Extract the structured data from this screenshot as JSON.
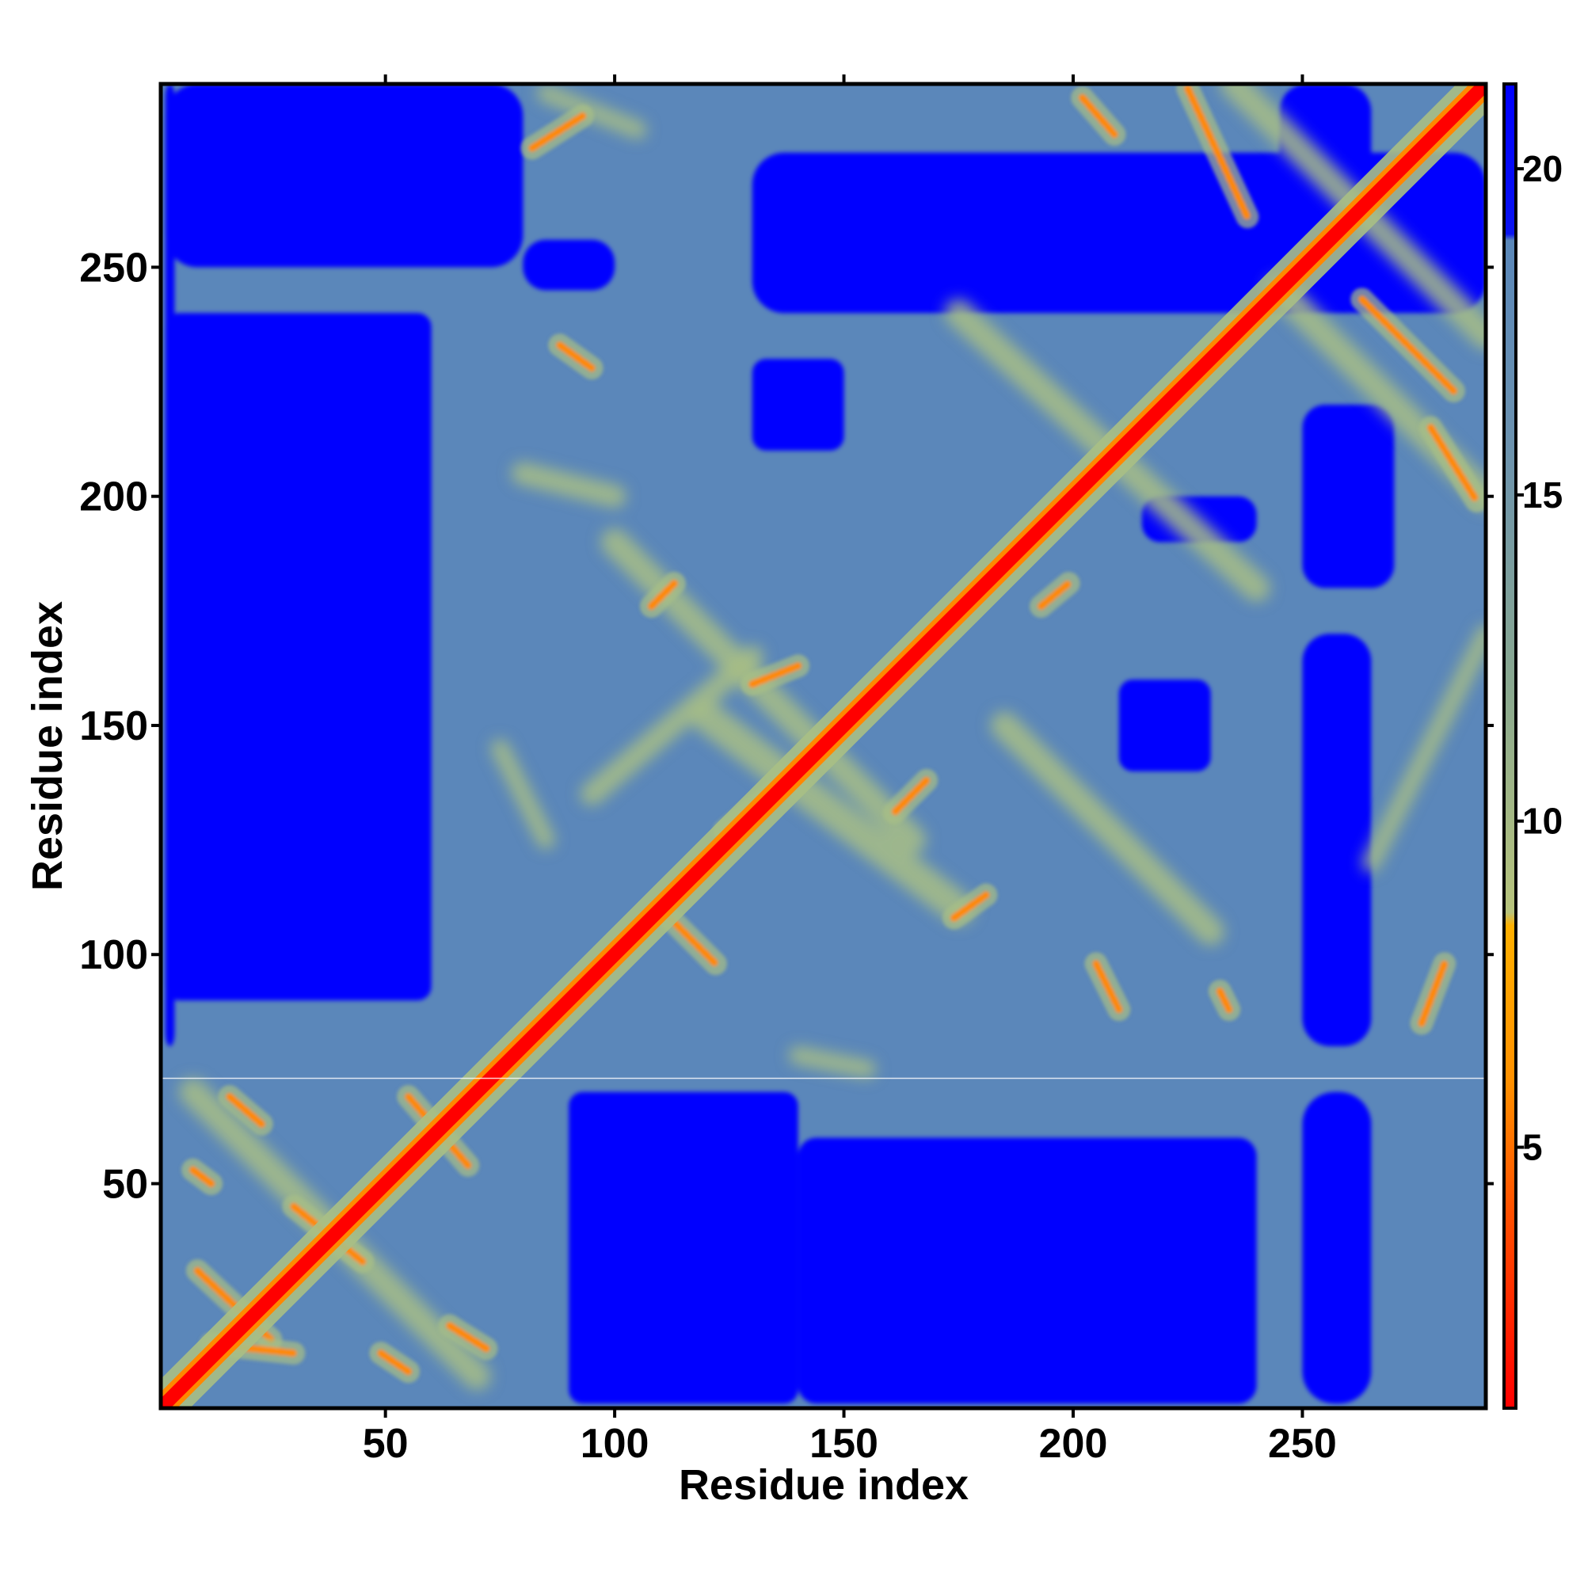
{
  "chart_data": {
    "type": "heatmap",
    "title": "",
    "xlabel": "Residue index",
    "ylabel": "Residue index",
    "xlim": [
      1,
      290
    ],
    "ylim": [
      1,
      290
    ],
    "x_ticks": [
      50,
      100,
      150,
      200,
      250
    ],
    "y_ticks": [
      50,
      100,
      150,
      200,
      250
    ],
    "colorbar": {
      "range": [
        1,
        21.3
      ],
      "ticks": [
        5,
        10,
        15,
        20
      ],
      "color_stops": [
        {
          "value": 1,
          "color": "#ff0000"
        },
        {
          "value": 4,
          "color": "#ff5000"
        },
        {
          "value": 6,
          "color": "#ff9000"
        },
        {
          "value": 8.4,
          "color": "#ffb000"
        },
        {
          "value": 8.6,
          "color": "#b8c47c"
        },
        {
          "value": 12,
          "color": "#8aa98f"
        },
        {
          "value": 16,
          "color": "#6a91b0"
        },
        {
          "value": 18.9,
          "color": "#5a87b9"
        },
        {
          "value": 19,
          "color": "#0a14f0"
        },
        {
          "value": 21.3,
          "color": "#0000ff"
        }
      ]
    },
    "colors": {
      "background_level": "#5b87ba",
      "far": "#0000ff",
      "mid": "#a9bf85",
      "near": "#ff8800",
      "diagonal": "#ff0000"
    },
    "features": {
      "near_contacts": [
        {
          "x": [
            112,
            122
          ],
          "y": [
            108,
            98
          ]
        },
        {
          "x": [
            135,
            124
          ],
          "y": [
            136,
            127
          ]
        },
        {
          "x": [
            130,
            140
          ],
          "y": [
            159,
            163
          ]
        },
        {
          "x": [
            108,
            113
          ],
          "y": [
            176,
            181
          ]
        },
        {
          "x": [
            168,
            161
          ],
          "y": [
            138,
            131
          ]
        },
        {
          "x": [
            174,
            181
          ],
          "y": [
            108,
            113
          ]
        },
        {
          "x": [
            193,
            199
          ],
          "y": [
            176,
            181
          ]
        },
        {
          "x": [
            202,
            209
          ],
          "y": [
            287,
            279
          ]
        },
        {
          "x": [
            225,
            238
          ],
          "y": [
            289,
            261
          ]
        },
        {
          "x": [
            263,
            283
          ],
          "y": [
            243,
            223
          ]
        },
        {
          "x": [
            278,
            288
          ],
          "y": [
            215,
            199
          ]
        },
        {
          "x": [
            16,
            23
          ],
          "y": [
            69,
            63
          ]
        },
        {
          "x": [
            9,
            25
          ],
          "y": [
            31,
            16
          ]
        },
        {
          "x": [
            12,
            30
          ],
          "y": [
            15,
            13
          ]
        },
        {
          "x": [
            30,
            45
          ],
          "y": [
            45,
            33
          ]
        },
        {
          "x": [
            55,
            68
          ],
          "y": [
            69,
            54
          ]
        },
        {
          "x": [
            64,
            72
          ],
          "y": [
            19,
            14
          ]
        },
        {
          "x": [
            49,
            55
          ],
          "y": [
            13,
            9
          ]
        },
        {
          "x": [
            8,
            12
          ],
          "y": [
            53,
            50
          ]
        },
        {
          "x": [
            82,
            93
          ],
          "y": [
            276,
            283
          ]
        },
        {
          "x": [
            88,
            95
          ],
          "y": [
            233,
            228
          ]
        },
        {
          "x": [
            276,
            281
          ],
          "y": [
            85,
            98
          ]
        },
        {
          "x": [
            232,
            234
          ],
          "y": [
            92,
            88
          ]
        },
        {
          "x": [
            205,
            210
          ],
          "y": [
            98,
            88
          ]
        }
      ],
      "mid_bands": [
        {
          "x": [
            120,
            175
          ],
          "y": [
            152,
            110
          ],
          "w": 7
        },
        {
          "x": [
            100,
            165
          ],
          "y": [
            190,
            125
          ],
          "w": 6
        },
        {
          "x": [
            185,
            230
          ],
          "y": [
            150,
            105
          ],
          "w": 6
        },
        {
          "x": [
            175,
            240
          ],
          "y": [
            240,
            180
          ],
          "w": 6
        },
        {
          "x": [
            80,
            100
          ],
          "y": [
            205,
            200
          ],
          "w": 5
        },
        {
          "x": [
            140,
            155
          ],
          "y": [
            78,
            75
          ],
          "w": 4
        },
        {
          "x": [
            75,
            85
          ],
          "y": [
            145,
            125
          ],
          "w": 4
        },
        {
          "x": [
            8,
            70
          ],
          "y": [
            70,
            8
          ],
          "w": 6
        },
        {
          "x": [
            235,
            290
          ],
          "y": [
            290,
            235
          ],
          "w": 6
        },
        {
          "x": [
            245,
            290
          ],
          "y": [
            245,
            200
          ],
          "w": 6
        },
        {
          "x": [
            85,
            105
          ],
          "y": [
            288,
            280
          ],
          "w": 4
        },
        {
          "x": [
            265,
            290
          ],
          "y": [
            120,
            170
          ],
          "w": 4
        },
        {
          "x": [
            95,
            130
          ],
          "y": [
            135,
            165
          ],
          "w": 5
        }
      ],
      "far_regions": [
        {
          "x": [
            2,
            80
          ],
          "y": [
            250,
            290
          ],
          "r": 7
        },
        {
          "x": [
            80,
            100
          ],
          "y": [
            245,
            256
          ],
          "r": 5
        },
        {
          "x": [
            130,
            290
          ],
          "y": [
            240,
            275
          ],
          "r": 7
        },
        {
          "x": [
            245,
            265
          ],
          "y": [
            240,
            290
          ],
          "r": 6
        },
        {
          "x": [
            250,
            265
          ],
          "y": [
            2,
            70
          ],
          "r": 7
        },
        {
          "x": [
            250,
            265
          ],
          "y": [
            80,
            170
          ],
          "r": 6
        },
        {
          "x": [
            250,
            270
          ],
          "y": [
            180,
            220
          ],
          "r": 5
        },
        {
          "x": [
            2,
            4
          ],
          "y": [
            80,
            290
          ],
          "r": 3
        },
        {
          "x": [
            90,
            140
          ],
          "y": [
            2,
            70
          ],
          "r": 3
        },
        {
          "x": [
            140,
            240
          ],
          "y": [
            2,
            60
          ],
          "r": 4
        },
        {
          "x": [
            2,
            60
          ],
          "y": [
            90,
            240
          ],
          "r": 3
        },
        {
          "x": [
            215,
            240
          ],
          "y": [
            190,
            200
          ],
          "r": 4
        },
        {
          "x": [
            130,
            150
          ],
          "y": [
            210,
            230
          ],
          "r": 3
        },
        {
          "x": [
            210,
            230
          ],
          "y": [
            140,
            160
          ],
          "r": 3
        }
      ],
      "seam_y": 73
    }
  }
}
